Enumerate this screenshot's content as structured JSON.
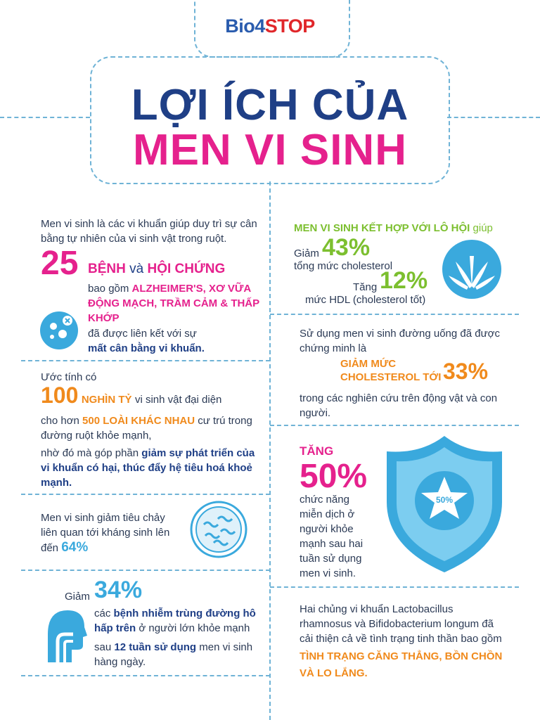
{
  "brand": {
    "logo_blue": "Bio4",
    "logo_red": "STOP"
  },
  "title": {
    "line1": "LỢI ÍCH CỦA",
    "line2": "MEN VI SINH"
  },
  "colors": {
    "navy": "#1f3f86",
    "pink": "#e5218d",
    "orange": "#f08a1c",
    "green": "#7cbf2f",
    "dash": "#6fb3d6"
  },
  "left": {
    "intro": "Men vi sinh là các vi khuẩn giúp duy trì sự cân bằng tự nhiên của vi sinh vật trong ruột.",
    "stat25": {
      "number": "25",
      "word1": "BỆNH",
      "and": "và",
      "word2": "HỘI CHỨNG",
      "including": "bao gồm",
      "diseases": "ALZHEIMER'S, XƠ VỮA ĐỘNG MẠCH, TRẦM CẢM & THẤP KHỚP",
      "linked": "đã được liên kết với sự",
      "imbalance": "mất cân bằng vi khuẩn.",
      "icon": "bacteria-icon"
    },
    "stat100": {
      "estimate": "Ước tính có",
      "number": "100",
      "unit": "NGHÌN TỶ",
      "rest": "vi sinh vật đại diện",
      "more_than": "cho hơn",
      "species": "500 LOÀI KHÁC NHAU",
      "reside": "cư trú trong đường ruột khỏe mạnh,",
      "thanks": "nhờ đó mà góp phần",
      "bold": "giảm sự phát triển của vi khuẩn có hại, thúc đẩy hệ tiêu hoá khoẻ mạnh."
    },
    "stat64": {
      "text": "Men vi sinh giảm tiêu chảy liên quan tới kháng sinh lên đến",
      "number": "64%",
      "icon": "microbe-circle-icon"
    },
    "stat34": {
      "reduce": "Giảm",
      "number": "34%",
      "the": "các",
      "infection": "bệnh nhiễm trùng đường hô hấp trên",
      "in_adults": "ở người lớn khỏe mạnh",
      "after": "sau",
      "weeks": "12 tuần sử dụng",
      "daily": "men vi sinh hàng ngày.",
      "icon": "respiratory-head-icon"
    }
  },
  "right": {
    "aloe": {
      "heading": "MEN VI SINH KẾT HỢP VỚI LÔ HỘI",
      "helps": "giúp",
      "reduce": "Giảm",
      "pct1": "43%",
      "total": "tổng mức cholesterol",
      "increase": "Tăng",
      "pct2": "12%",
      "hdl": "mức HDL (cholesterol tốt)",
      "icon": "aloe-vera-icon"
    },
    "chol": {
      "text": "Sử dụng men vi sinh đường uống đã được chứng minh là",
      "reduce_label": "GIẢM MỨC CHOLESTEROL TỚI",
      "number": "33%",
      "tail": "trong các nghiên cứu trên động vật và con người."
    },
    "immune": {
      "increase": "TĂNG",
      "number": "50%",
      "text": "chức năng miễn dịch ở người khỏe mạnh sau hai tuần sử dụng men vi sinh.",
      "badge": "50%",
      "icon": "shield-star-icon"
    },
    "mental": {
      "text": "Hai chủng vi khuẩn Lactobacillus rhamnosus và Bifidobacterium longum đã cải thiện cả về tình trạng tinh thần bao gồm",
      "highlight": "TÌNH TRẠNG CĂNG THẲNG, BỒN CHỒN VÀ LO LẮNG."
    }
  }
}
